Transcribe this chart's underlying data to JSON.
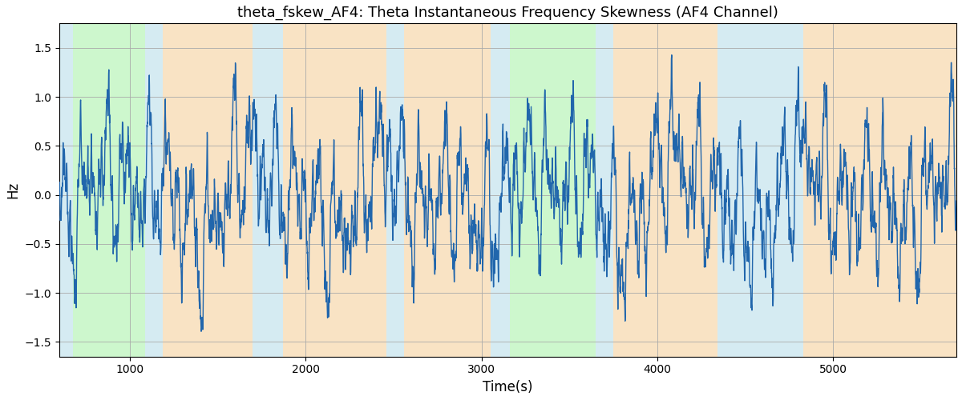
{
  "title": "theta_fskew_AF4: Theta Instantaneous Frequency Skewness (AF4 Channel)",
  "xlabel": "Time(s)",
  "ylabel": "Hz",
  "xlim": [
    600,
    5700
  ],
  "ylim": [
    -1.65,
    1.75
  ],
  "yticks": [
    -1.5,
    -1.0,
    -0.5,
    0.0,
    0.5,
    1.0,
    1.5
  ],
  "xticks": [
    1000,
    2000,
    3000,
    4000,
    5000
  ],
  "line_color": "#2166ac",
  "line_width": 1.0,
  "background_color": "#ffffff",
  "grid_color": "#aaaaaa",
  "bands": [
    {
      "xmin": 600,
      "xmax": 680,
      "color": "#add8e6",
      "alpha": 0.5
    },
    {
      "xmin": 680,
      "xmax": 1090,
      "color": "#90ee90",
      "alpha": 0.45
    },
    {
      "xmin": 1090,
      "xmax": 1190,
      "color": "#add8e6",
      "alpha": 0.5
    },
    {
      "xmin": 1190,
      "xmax": 1700,
      "color": "#f5c98a",
      "alpha": 0.5
    },
    {
      "xmin": 1700,
      "xmax": 1870,
      "color": "#add8e6",
      "alpha": 0.5
    },
    {
      "xmin": 1870,
      "xmax": 2460,
      "color": "#f5c98a",
      "alpha": 0.5
    },
    {
      "xmin": 2460,
      "xmax": 2560,
      "color": "#add8e6",
      "alpha": 0.5
    },
    {
      "xmin": 2560,
      "xmax": 3050,
      "color": "#f5c98a",
      "alpha": 0.5
    },
    {
      "xmin": 3050,
      "xmax": 3160,
      "color": "#add8e6",
      "alpha": 0.5
    },
    {
      "xmin": 3160,
      "xmax": 3650,
      "color": "#90ee90",
      "alpha": 0.45
    },
    {
      "xmin": 3650,
      "xmax": 3750,
      "color": "#add8e6",
      "alpha": 0.5
    },
    {
      "xmin": 3750,
      "xmax": 4340,
      "color": "#f5c98a",
      "alpha": 0.5
    },
    {
      "xmin": 4340,
      "xmax": 4830,
      "color": "#add8e6",
      "alpha": 0.5
    },
    {
      "xmin": 4830,
      "xmax": 5700,
      "color": "#f5c98a",
      "alpha": 0.5
    }
  ],
  "seed": 12345,
  "n_points": 5100
}
